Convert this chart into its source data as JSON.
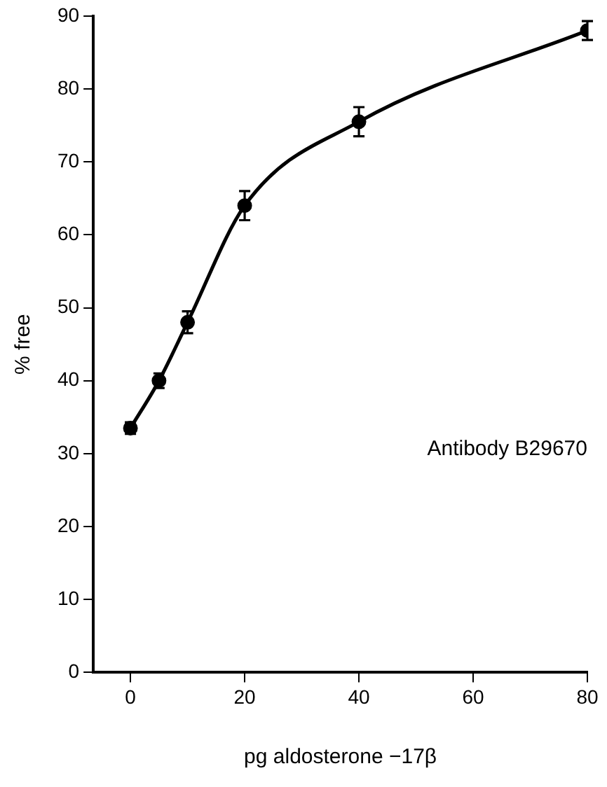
{
  "chart_data": {
    "type": "line",
    "xlabel": "pg aldosterone −17β",
    "ylabel": "% free",
    "x": [
      0,
      5,
      10,
      20,
      40,
      80
    ],
    "series": [
      {
        "color": "#000000",
        "values": [
          33.5,
          40,
          48,
          64,
          75.5,
          88
        ],
        "errors": [
          0.8,
          1,
          1.5,
          2,
          2,
          1.3
        ]
      }
    ],
    "xlim": [
      -6.5,
      80
    ],
    "xticks": [
      0,
      20,
      40,
      60,
      80
    ],
    "ylim": [
      0,
      90
    ],
    "yticks": [
      0,
      10,
      20,
      30,
      40,
      50,
      60,
      70,
      80,
      90
    ],
    "marker": "circle",
    "line_style": "solid",
    "grid": false,
    "legend": false,
    "annotations": [
      "Antibody B29670"
    ]
  }
}
